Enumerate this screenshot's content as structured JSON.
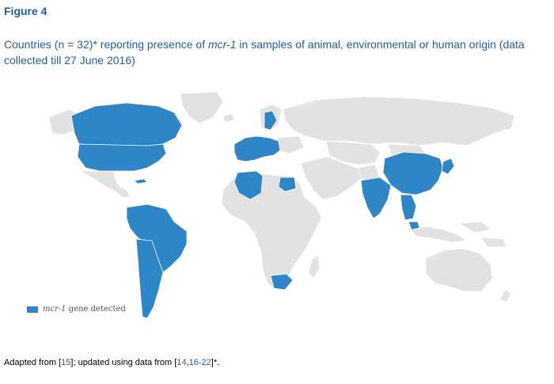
{
  "figure_label": "Figure 4",
  "caption": {
    "before": "Countries (n = 32)* reporting presence of ",
    "gene": "mcr-1",
    "after": " in samples of animal, environmental or human origin (data collected till 27 June 2016)"
  },
  "legend": {
    "gene": "mcr-1",
    "text": " gene detected",
    "color": "#2f86c7"
  },
  "map": {
    "detected_color": "#2f86c7",
    "other_color": "#e2e2e2",
    "border_color": "#ffffff"
  },
  "footnote": {
    "pre": "Adapted from [",
    "ref1": "15",
    "mid": "]; updated using data from [",
    "ref2": "14",
    "comma": ",",
    "ref3": "16-22",
    "post": "]*."
  }
}
